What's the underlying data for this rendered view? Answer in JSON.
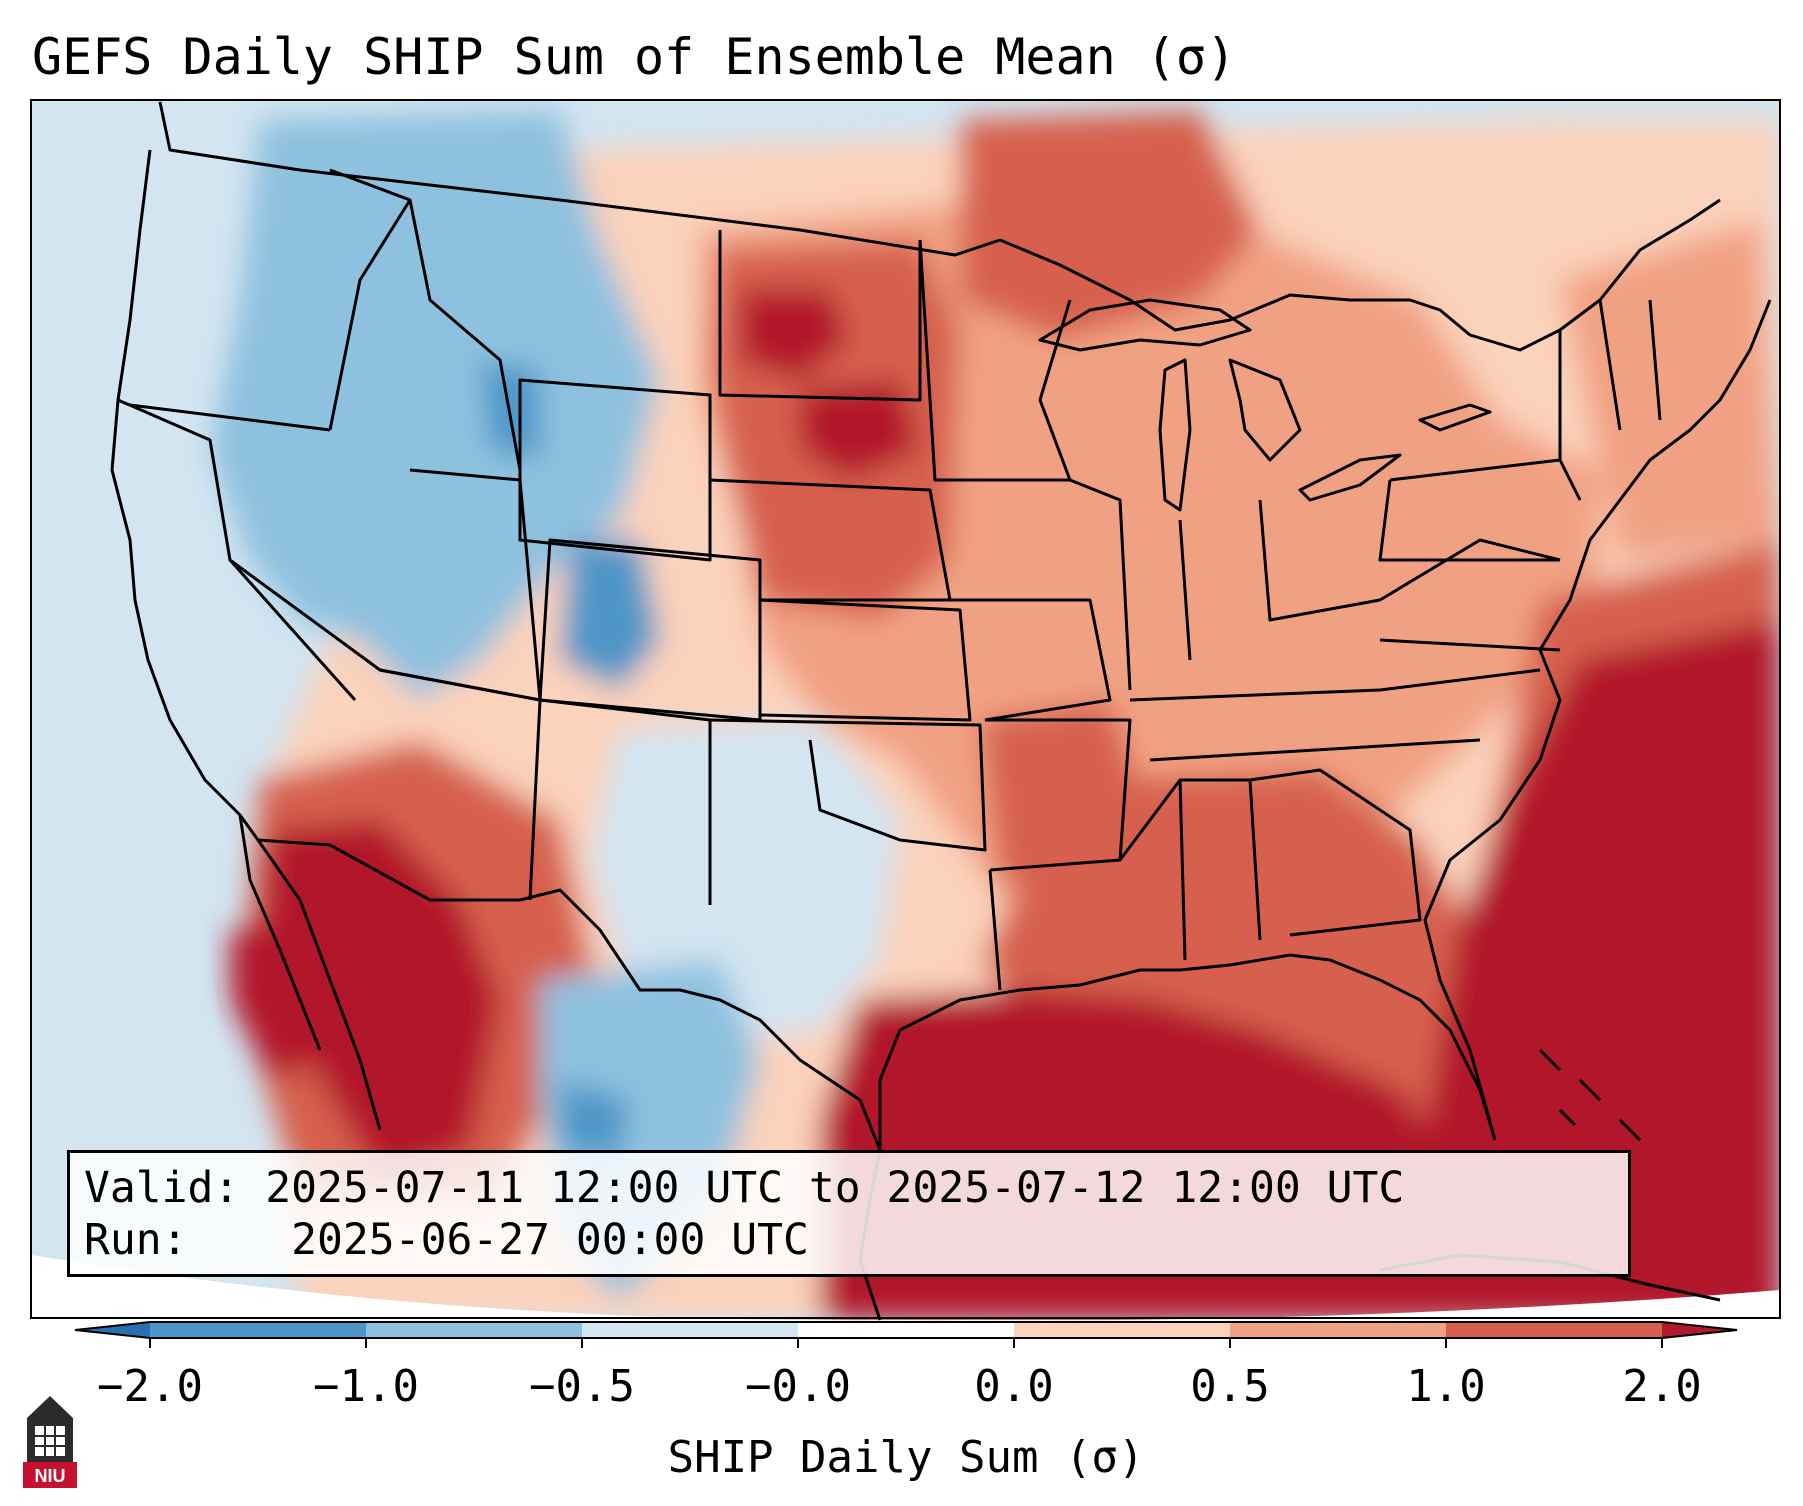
{
  "title": "GEFS Daily SHIP Sum of Ensemble Mean (σ)",
  "info": {
    "valid_label": "Valid:",
    "valid_value": "2025-07-11 12:00 UTC to 2025-07-12 12:00 UTC",
    "run_label": "Run:",
    "run_value": "2025-06-27 00:00 UTC"
  },
  "colorbar": {
    "label": "SHIP Daily Sum (σ)",
    "ticks": [
      "−2.0",
      "−1.0",
      "−0.5",
      "−0.0",
      "0.0",
      "0.5",
      "1.0",
      "2.0"
    ],
    "colors": [
      "#2a6fb3",
      "#4d96c8",
      "#8ec1df",
      "#d2e5f1",
      "#ffffff",
      "#fbd2bb",
      "#f1a183",
      "#d6604d",
      "#b2182b"
    ]
  },
  "logo": {
    "icon": "niu-tower-icon",
    "text": "NIU"
  },
  "map": {
    "region": "Contiguous United States with parts of Canada, Mexico, Gulf of Mexico and western Atlantic",
    "colors": {
      "strong_warm": "#b2182b",
      "warm": "#d6604d",
      "mild_warm": "#f1a183",
      "slight_warm": "#fbd2bb",
      "slight_cool": "#d2e5f1",
      "cool": "#8ec1df",
      "strong_cool": "#4d96c8"
    }
  }
}
